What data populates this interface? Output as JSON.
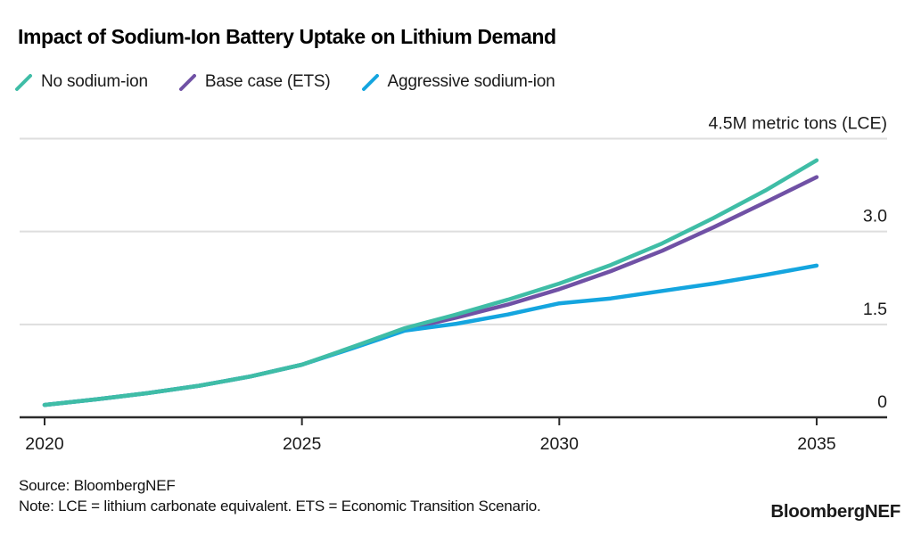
{
  "title": "Impact of Sodium-Ion Battery Uptake on Lithium Demand",
  "chart_data": {
    "type": "line",
    "title": "Impact of Sodium-Ion Battery Uptake on Lithium Demand",
    "unit_label": "4.5M metric tons (LCE)",
    "x": [
      2020,
      2021,
      2022,
      2023,
      2024,
      2025,
      2026,
      2027,
      2028,
      2029,
      2030,
      2031,
      2032,
      2033,
      2034,
      2035
    ],
    "xticks": [
      "2020",
      "2025",
      "2030",
      "2035"
    ],
    "yticks": [
      {
        "value": 0,
        "label": "0"
      },
      {
        "value": 1.5,
        "label": "1.5"
      },
      {
        "value": 3.0,
        "label": "3.0"
      },
      {
        "value": 4.5,
        "label": "4.5M metric tons (LCE)"
      }
    ],
    "ylim": [
      0,
      4.7
    ],
    "xlim": [
      2019.5,
      2036.4
    ],
    "grid": "horizontal",
    "legend_position": "top-left",
    "series": [
      {
        "name": "No sodium-ion",
        "color": "#3fbda6",
        "values": [
          0.2,
          0.29,
          0.39,
          0.51,
          0.66,
          0.85,
          1.14,
          1.44,
          1.66,
          1.9,
          2.16,
          2.46,
          2.81,
          3.22,
          3.66,
          4.15
        ]
      },
      {
        "name": "Base case (ETS)",
        "color": "#7051a5",
        "values": [
          0.2,
          0.29,
          0.39,
          0.51,
          0.66,
          0.85,
          1.13,
          1.42,
          1.61,
          1.82,
          2.07,
          2.36,
          2.69,
          3.07,
          3.47,
          3.88
        ]
      },
      {
        "name": "Aggressive sodium-ion",
        "color": "#14a5df",
        "values": [
          0.2,
          0.29,
          0.39,
          0.51,
          0.66,
          0.85,
          1.12,
          1.4,
          1.51,
          1.66,
          1.84,
          1.92,
          2.04,
          2.16,
          2.3,
          2.45
        ]
      }
    ],
    "colors": {
      "grid": "#dedede",
      "axis": "#2b2b2b",
      "tick_text": "#1a1a1a"
    }
  },
  "footer": {
    "source": "Source: BloombergNEF",
    "note": "Note: LCE = lithium carbonate equivalent. ETS = Economic Transition Scenario.",
    "logo": "BloombergNEF"
  }
}
